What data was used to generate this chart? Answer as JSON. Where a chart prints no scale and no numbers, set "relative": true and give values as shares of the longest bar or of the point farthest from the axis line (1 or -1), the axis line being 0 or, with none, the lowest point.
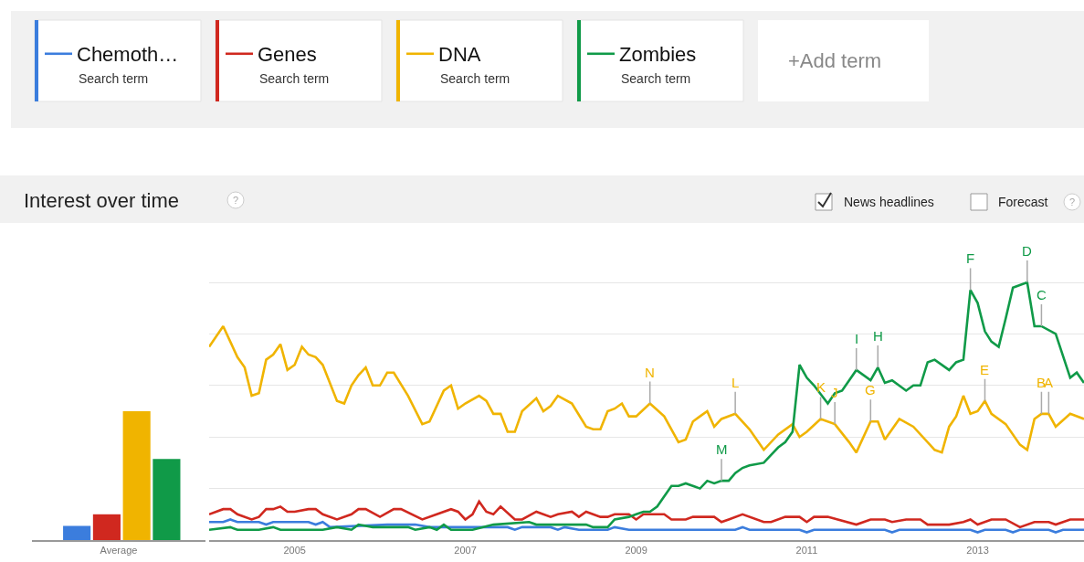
{
  "chart_data": [
    {
      "type": "bar",
      "relative": true,
      "xlabel": "Average",
      "categories": [
        null,
        null,
        null,
        null
      ],
      "values": [
        0.11,
        0.2,
        1,
        0.63
      ],
      "colors": [
        "#3b7ddd",
        "#d0281f",
        "#f0b400",
        "#109a48"
      ]
    },
    {
      "type": "line",
      "title": "Interest over time",
      "relative": true,
      "grid": "y",
      "legend": "top left",
      "xlim": [
        "2004-01",
        "2014-04"
      ],
      "xticks": [
        "2005",
        "2007",
        "2009",
        "2011",
        "2013"
      ],
      "series": [
        {
          "name": "Chemoth…",
          "color": "#3b7ddd",
          "x": [
            "2004-01",
            "2004-03",
            "2004-04",
            "2004-05",
            "2004-08",
            "2004-09",
            "2004-10",
            "2005-03",
            "2005-04",
            "2005-05",
            "2005-06",
            "2006-02",
            "2006-06",
            "2006-08",
            "2006-12",
            "2007-02",
            "2007-07",
            "2007-08",
            "2007-09",
            "2008-01",
            "2008-02",
            "2008-03",
            "2008-05",
            "2008-09",
            "2008-10",
            "2008-12",
            "2010-03",
            "2010-04",
            "2010-05",
            "2010-12",
            "2011-01",
            "2011-02",
            "2011-12",
            "2012-01",
            "2012-02",
            "2012-12",
            "2013-01",
            "2013-02",
            "2013-05",
            "2013-06",
            "2013-07",
            "2013-11",
            "2013-12",
            "2014-01",
            "2014-04"
          ],
          "values": [
            0.07,
            0.07,
            0.08,
            0.07,
            0.07,
            0.06,
            0.07,
            0.07,
            0.06,
            0.07,
            0.05,
            0.06,
            0.06,
            0.05,
            0.05,
            0.05,
            0.05,
            0.04,
            0.05,
            0.05,
            0.04,
            0.05,
            0.04,
            0.04,
            0.05,
            0.04,
            0.04,
            0.05,
            0.04,
            0.04,
            0.03,
            0.04,
            0.04,
            0.03,
            0.04,
            0.04,
            0.03,
            0.04,
            0.04,
            0.03,
            0.04,
            0.04,
            0.03,
            0.04,
            0.04
          ]
        },
        {
          "name": "Genes",
          "color": "#d0281f",
          "x": [
            "2004-01",
            "2004-03",
            "2004-04",
            "2004-05",
            "2004-07",
            "2004-08",
            "2004-09",
            "2004-10",
            "2004-11",
            "2004-12",
            "2005-01",
            "2005-03",
            "2005-04",
            "2005-05",
            "2005-07",
            "2005-09",
            "2005-10",
            "2005-11",
            "2006-01",
            "2006-03",
            "2006-04",
            "2006-07",
            "2006-09",
            "2006-11",
            "2006-12",
            "2007-01",
            "2007-02",
            "2007-03",
            "2007-04",
            "2007-05",
            "2007-06",
            "2007-08",
            "2007-09",
            "2007-11",
            "2008-01",
            "2008-02",
            "2008-04",
            "2008-05",
            "2008-06",
            "2008-08",
            "2008-09",
            "2008-10",
            "2008-12",
            "2009-01",
            "2009-02",
            "2009-03",
            "2009-05",
            "2009-06",
            "2009-08",
            "2009-09",
            "2009-12",
            "2010-01",
            "2010-02",
            "2010-04",
            "2010-07",
            "2010-08",
            "2010-10",
            "2010-12",
            "2011-01",
            "2011-02",
            "2011-04",
            "2011-08",
            "2011-10",
            "2011-12",
            "2012-01",
            "2012-03",
            "2012-05",
            "2012-06",
            "2012-09",
            "2012-11",
            "2012-12",
            "2013-01",
            "2013-03",
            "2013-05",
            "2013-07",
            "2013-09",
            "2013-11",
            "2013-12",
            "2014-02",
            "2014-04"
          ],
          "values": [
            0.1,
            0.12,
            0.12,
            0.1,
            0.08,
            0.09,
            0.12,
            0.12,
            0.13,
            0.11,
            0.11,
            0.12,
            0.12,
            0.1,
            0.08,
            0.1,
            0.12,
            0.12,
            0.09,
            0.12,
            0.12,
            0.08,
            0.1,
            0.12,
            0.11,
            0.08,
            0.1,
            0.15,
            0.11,
            0.1,
            0.13,
            0.08,
            0.08,
            0.11,
            0.09,
            0.1,
            0.11,
            0.09,
            0.11,
            0.09,
            0.09,
            0.1,
            0.1,
            0.08,
            0.1,
            0.1,
            0.1,
            0.08,
            0.08,
            0.09,
            0.09,
            0.07,
            0.08,
            0.1,
            0.07,
            0.07,
            0.09,
            0.09,
            0.07,
            0.09,
            0.09,
            0.06,
            0.08,
            0.08,
            0.07,
            0.08,
            0.08,
            0.06,
            0.06,
            0.07,
            0.08,
            0.06,
            0.08,
            0.08,
            0.05,
            0.07,
            0.07,
            0.06,
            0.08,
            0.08
          ]
        },
        {
          "name": "DNA",
          "color": "#f0b400",
          "x": [
            "2004-01",
            "2004-03",
            "2004-05",
            "2004-06",
            "2004-07",
            "2004-08",
            "2004-09",
            "2004-10",
            "2004-11",
            "2004-12",
            "2005-01",
            "2005-02",
            "2005-03",
            "2005-04",
            "2005-05",
            "2005-07",
            "2005-08",
            "2005-09",
            "2005-10",
            "2005-11",
            "2005-12",
            "2006-01",
            "2006-02",
            "2006-03",
            "2006-05",
            "2006-07",
            "2006-08",
            "2006-10",
            "2006-11",
            "2006-12",
            "2007-01",
            "2007-03",
            "2007-04",
            "2007-05",
            "2007-06",
            "2007-07",
            "2007-08",
            "2007-09",
            "2007-11",
            "2007-12",
            "2008-01",
            "2008-02",
            "2008-04",
            "2008-06",
            "2008-07",
            "2008-08",
            "2008-09",
            "2008-10",
            "2008-11",
            "2008-12",
            "2009-01",
            "2009-03",
            "2009-05",
            "2009-07",
            "2009-08",
            "2009-09",
            "2009-10",
            "2009-11",
            "2009-12",
            "2010-01",
            "2010-03",
            "2010-05",
            "2010-07",
            "2010-09",
            "2010-11",
            "2010-12",
            "2011-01",
            "2011-03",
            "2011-05",
            "2011-07",
            "2011-08",
            "2011-10",
            "2011-11",
            "2011-12",
            "2012-02",
            "2012-04",
            "2012-07",
            "2012-08",
            "2012-09",
            "2012-10",
            "2012-11",
            "2012-12",
            "2013-01",
            "2013-02",
            "2013-03",
            "2013-05",
            "2013-07",
            "2013-08",
            "2013-09",
            "2013-10",
            "2013-11",
            "2013-12",
            "2014-02",
            "2014-04"
          ],
          "values": [
            0.75,
            0.83,
            0.71,
            0.67,
            0.56,
            0.57,
            0.7,
            0.72,
            0.76,
            0.66,
            0.68,
            0.75,
            0.72,
            0.71,
            0.68,
            0.54,
            0.53,
            0.6,
            0.64,
            0.67,
            0.6,
            0.6,
            0.65,
            0.65,
            0.56,
            0.45,
            0.46,
            0.58,
            0.6,
            0.51,
            0.53,
            0.56,
            0.54,
            0.49,
            0.49,
            0.42,
            0.42,
            0.5,
            0.55,
            0.5,
            0.52,
            0.56,
            0.53,
            0.44,
            0.43,
            0.43,
            0.5,
            0.51,
            0.53,
            0.48,
            0.48,
            0.53,
            0.48,
            0.38,
            0.39,
            0.46,
            0.48,
            0.5,
            0.44,
            0.47,
            0.49,
            0.43,
            0.35,
            0.41,
            0.45,
            0.4,
            0.42,
            0.47,
            0.45,
            0.38,
            0.34,
            0.46,
            0.46,
            0.39,
            0.47,
            0.44,
            0.35,
            0.34,
            0.44,
            0.48,
            0.56,
            0.49,
            0.5,
            0.54,
            0.49,
            0.45,
            0.37,
            0.35,
            0.47,
            0.49,
            0.49,
            0.44,
            0.49,
            0.47
          ]
        },
        {
          "name": "Zombies",
          "color": "#109a48",
          "x": [
            "2004-01",
            "2004-04",
            "2004-05",
            "2004-08",
            "2004-10",
            "2004-11",
            "2005-05",
            "2005-07",
            "2005-09",
            "2005-10",
            "2005-12",
            "2006-05",
            "2006-06",
            "2006-08",
            "2006-09",
            "2006-10",
            "2006-11",
            "2007-02",
            "2007-05",
            "2007-10",
            "2007-11",
            "2008-06",
            "2008-07",
            "2008-09",
            "2008-10",
            "2008-12",
            "2009-01",
            "2009-02",
            "2009-03",
            "2009-04",
            "2009-06",
            "2009-07",
            "2009-08",
            "2009-10",
            "2009-11",
            "2009-12",
            "2010-01",
            "2010-02",
            "2010-03",
            "2010-04",
            "2010-05",
            "2010-07",
            "2010-08",
            "2010-09",
            "2010-10",
            "2010-11",
            "2010-12",
            "2011-01",
            "2011-02",
            "2011-04",
            "2011-05",
            "2011-06",
            "2011-08",
            "2011-10",
            "2011-11",
            "2011-12",
            "2012-01",
            "2012-03",
            "2012-04",
            "2012-05",
            "2012-06",
            "2012-07",
            "2012-09",
            "2012-10",
            "2012-11",
            "2012-12",
            "2013-01",
            "2013-02",
            "2013-03",
            "2013-04",
            "2013-05",
            "2013-06",
            "2013-08",
            "2013-09",
            "2013-10",
            "2013-12",
            "2014-02",
            "2014-03",
            "2014-04"
          ],
          "values": [
            0.04,
            0.05,
            0.04,
            0.04,
            0.05,
            0.04,
            0.04,
            0.05,
            0.04,
            0.06,
            0.05,
            0.05,
            0.04,
            0.05,
            0.04,
            0.06,
            0.04,
            0.04,
            0.06,
            0.07,
            0.06,
            0.06,
            0.05,
            0.05,
            0.08,
            0.09,
            0.1,
            0.11,
            0.11,
            0.13,
            0.21,
            0.21,
            0.22,
            0.2,
            0.23,
            0.22,
            0.23,
            0.23,
            0.26,
            0.28,
            0.29,
            0.3,
            0.33,
            0.36,
            0.38,
            0.42,
            0.68,
            0.63,
            0.6,
            0.53,
            0.57,
            0.58,
            0.66,
            0.62,
            0.67,
            0.61,
            0.62,
            0.58,
            0.6,
            0.6,
            0.69,
            0.7,
            0.66,
            0.69,
            0.7,
            0.97,
            0.92,
            0.81,
            0.77,
            0.75,
            0.86,
            0.98,
            1,
            0.83,
            0.83,
            0.8,
            0.63,
            0.65,
            0.61
          ]
        }
      ],
      "annotations": [
        "Search term",
        "Search term",
        "Search term",
        "Search term",
        "+Add term",
        "News headlines",
        "Forecast",
        "?",
        "?",
        {
          "text": "N",
          "x": "2009-03",
          "y": 0.53
        },
        {
          "text": "M",
          "x": "2010-01",
          "y": 0.23
        },
        {
          "text": "L",
          "x": "2010-03",
          "y": 0.49
        },
        {
          "text": "K",
          "x": "2011-03",
          "y": 0.47
        },
        {
          "text": "J",
          "x": "2011-05",
          "y": 0.45
        },
        {
          "text": "I",
          "x": "2011-08",
          "y": 0.66
        },
        {
          "text": "G",
          "x": "2011-10",
          "y": 0.46
        },
        {
          "text": "H",
          "x": "2011-11",
          "y": 0.67
        },
        {
          "text": "F",
          "x": "2012-12",
          "y": 0.97
        },
        {
          "text": "E",
          "x": "2013-02",
          "y": 0.54
        },
        {
          "text": "D",
          "x": "2013-08",
          "y": 1
        },
        {
          "text": "C",
          "x": "2013-10",
          "y": 0.83
        },
        {
          "text": "B",
          "x": "2013-10",
          "y": 0.49
        },
        {
          "text": "A",
          "x": "2013-11",
          "y": 0.49
        }
      ]
    }
  ]
}
